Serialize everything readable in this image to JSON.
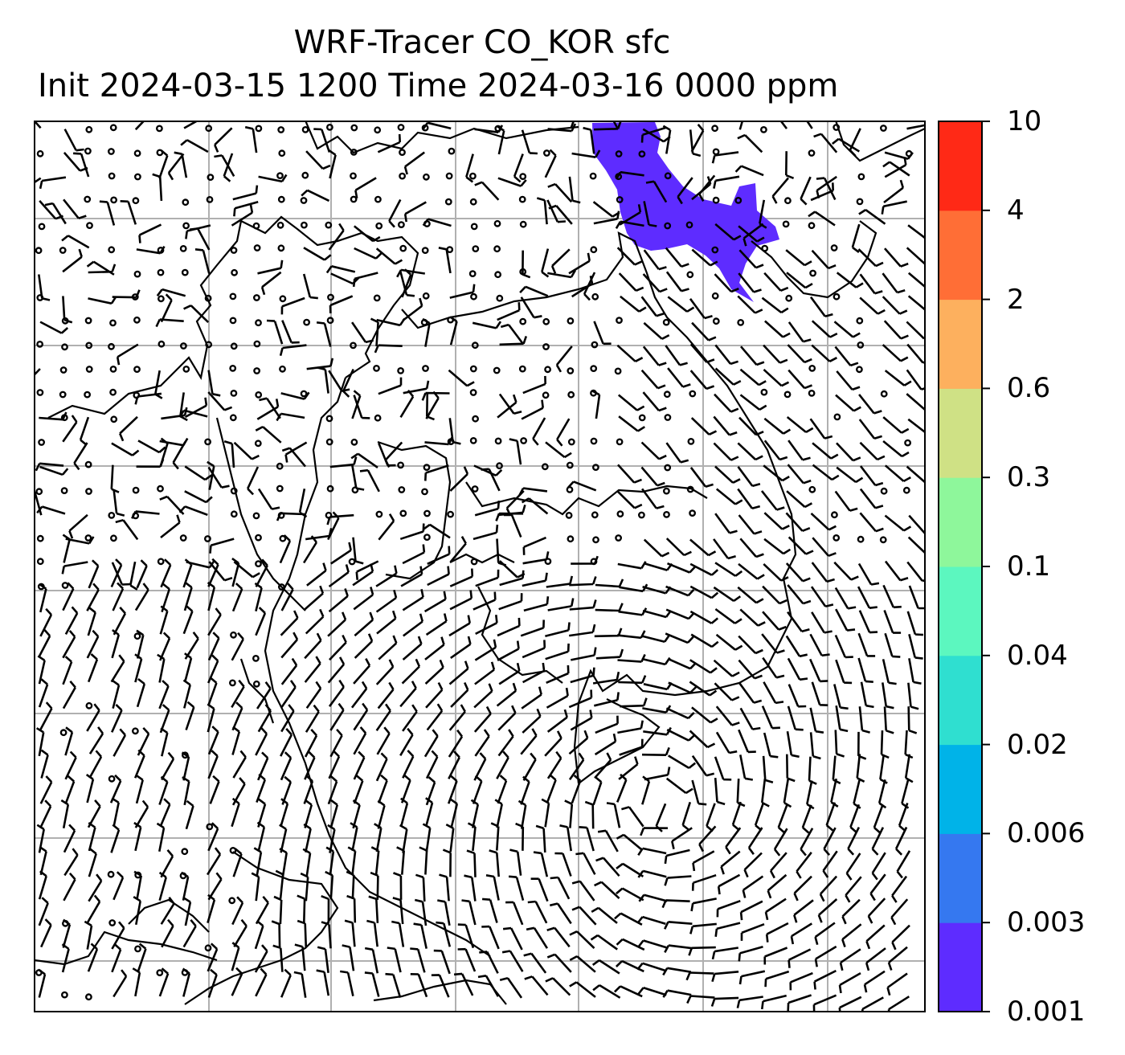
{
  "title": {
    "line1": "WRF-Tracer CO_KOR sfc",
    "line2": "Init 2024-03-15 1200 Time 2024-03-16 0000 ppm"
  },
  "colorbar": {
    "levels": [
      "0.001",
      "0.003",
      "0.006",
      "0.02",
      "0.04",
      "0.1",
      "0.3",
      "0.6",
      "2",
      "4",
      "10"
    ],
    "colors": [
      "#5e2cff",
      "#3578f0",
      "#00b3e8",
      "#2fdfd0",
      "#5cf7bf",
      "#8ef79b",
      "#cfe185",
      "#fdb05e",
      "#ff6e36",
      "#ff2916"
    ]
  },
  "map": {
    "grid": "on",
    "wind_barbs": "on",
    "coastlines": "on",
    "tracer_fill_color": "#5e2cff"
  }
}
